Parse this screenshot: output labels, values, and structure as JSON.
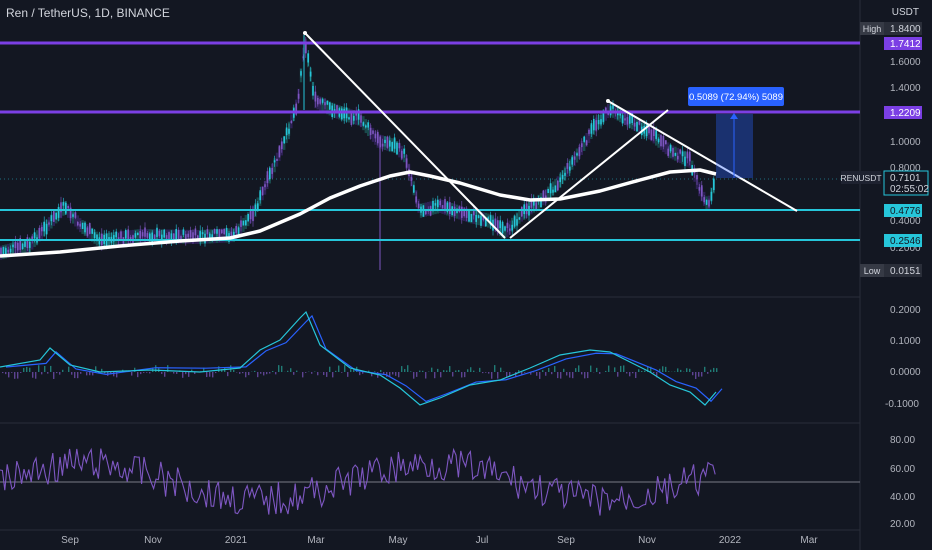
{
  "header": {
    "symbol_title": "Ren / TetherUS, 1D, BINANCE"
  },
  "price_axis": {
    "currency": "USDT",
    "ticks": [
      "1.6000",
      "1.4000",
      "1.0000",
      "0.8000",
      "0.4000",
      "0.2000"
    ],
    "high_label": "High",
    "high_value": "1.8400",
    "low_label": "Low",
    "low_value": "0.0151",
    "levels": [
      "1.7412",
      "1.2209",
      "0.4776",
      "0.2546"
    ],
    "symbol_tag": "RENUSDT",
    "last_price": "0.7101",
    "countdown": "02:55:02"
  },
  "measure_label": "0.5089 (72.94%) 5089",
  "macd_axis": {
    "ticks": [
      "0.2000",
      "0.1000",
      "0.0000",
      "-0.1000"
    ]
  },
  "rsi_axis": {
    "ticks": [
      "80.00",
      "60.00",
      "40.00",
      "20.00"
    ]
  },
  "time_axis": {
    "labels": [
      "Sep",
      "Nov",
      "2021",
      "Mar",
      "May",
      "Jul",
      "Sep",
      "Nov",
      "2022",
      "Mar"
    ]
  },
  "colors": {
    "background": "#131722",
    "purple_level": "#7b3fe4",
    "cyan_level": "#26c6da",
    "sma": "#ffffff",
    "trendline": "#ffffff",
    "candle_up": "#26c6da",
    "cloud_bear": "#7e57c2",
    "macd": "#26c6da",
    "signal": "#2962ff",
    "rsi": "#7e57c2",
    "measure": "#2962ff"
  },
  "icons": []
}
